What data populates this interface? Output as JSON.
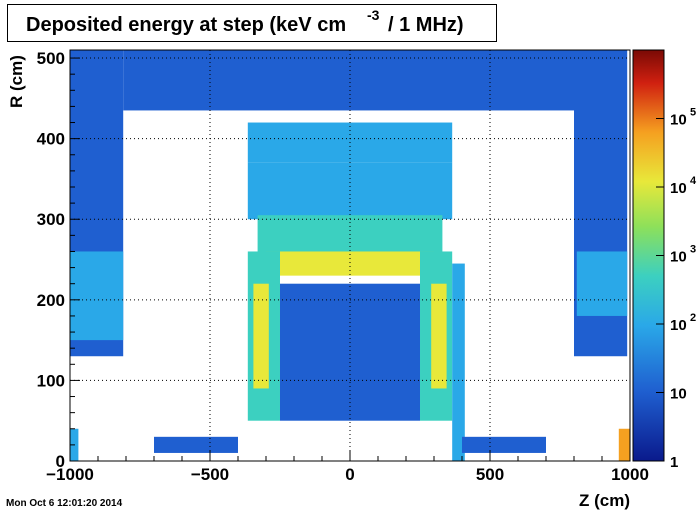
{
  "chart_data": {
    "type": "heatmap",
    "title_main": "Deposited energy at step (keV cm",
    "title_exponent": "-3",
    "title_tail": "/ 1 MHz)",
    "xlabel": "Z (cm)",
    "ylabel": "R (cm)",
    "xlim": [
      -1000,
      1000
    ],
    "ylim": [
      0,
      510
    ],
    "x_ticks": [
      -1000,
      -500,
      0,
      500,
      1000
    ],
    "x_tick_labels": [
      "−1000",
      "−500",
      "0",
      "500",
      "1000"
    ],
    "y_ticks": [
      0,
      100,
      200,
      300,
      400,
      500
    ],
    "y_tick_labels": [
      "0",
      "100",
      "200",
      "300",
      "400",
      "500"
    ],
    "grid": true,
    "colorbar": {
      "scale": "log",
      "range": [
        1,
        1000000
      ],
      "labels": [
        {
          "value": 1,
          "base": "1",
          "exp": ""
        },
        {
          "value": 10,
          "base": "10",
          "exp": ""
        },
        {
          "value": 100,
          "base": "10",
          "exp": "2"
        },
        {
          "value": 1000,
          "base": "10",
          "exp": "3"
        },
        {
          "value": 10000,
          "base": "10",
          "exp": "4"
        },
        {
          "value": 100000,
          "base": "10",
          "exp": "5"
        }
      ]
    },
    "regions": [
      {
        "z": [
          -1000,
          -810
        ],
        "r": [
          130,
          510
        ],
        "level": 1.0
      },
      {
        "z": [
          -1000,
          -810
        ],
        "r": [
          150,
          260
        ],
        "level": 1.5
      },
      {
        "z": [
          800,
          990
        ],
        "r": [
          130,
          510
        ],
        "level": 1.0
      },
      {
        "z": [
          810,
          990
        ],
        "r": [
          180,
          260
        ],
        "level": 1.6
      },
      {
        "z": [
          -810,
          800
        ],
        "r": [
          435,
          510
        ],
        "level": 0.9
      },
      {
        "z": [
          -365,
          365
        ],
        "r": [
          370,
          420
        ],
        "level": 1.4
      },
      {
        "z": [
          -365,
          365
        ],
        "r": [
          300,
          370
        ],
        "level": 1.2
      },
      {
        "z": [
          -330,
          330
        ],
        "r": [
          255,
          305
        ],
        "level": 1.9
      },
      {
        "z": [
          -300,
          300
        ],
        "r": [
          230,
          260
        ],
        "level": 3.4
      },
      {
        "z": [
          -365,
          -250
        ],
        "r": [
          50,
          260
        ],
        "level": 2.2
      },
      {
        "z": [
          250,
          365
        ],
        "r": [
          50,
          260
        ],
        "level": 2.2
      },
      {
        "z": [
          -345,
          -290
        ],
        "r": [
          90,
          220
        ],
        "level": 3.6
      },
      {
        "z": [
          290,
          345
        ],
        "r": [
          90,
          220
        ],
        "level": 3.9
      },
      {
        "z": [
          -250,
          250
        ],
        "r": [
          50,
          220
        ],
        "level": 0.4
      },
      {
        "z": [
          365,
          410
        ],
        "r": [
          0,
          245
        ],
        "level": 1.3
      },
      {
        "z": [
          -1000,
          -970
        ],
        "r": [
          0,
          40
        ],
        "level": 1.8
      },
      {
        "z": [
          960,
          1000
        ],
        "r": [
          0,
          40
        ],
        "level": 4.2
      },
      {
        "z": [
          -700,
          -400
        ],
        "r": [
          10,
          30
        ],
        "level": 0.5
      },
      {
        "z": [
          400,
          700
        ],
        "r": [
          10,
          30
        ],
        "level": 0.5
      }
    ]
  },
  "timestamp": "Mon Oct  6 12:01:20 2014"
}
